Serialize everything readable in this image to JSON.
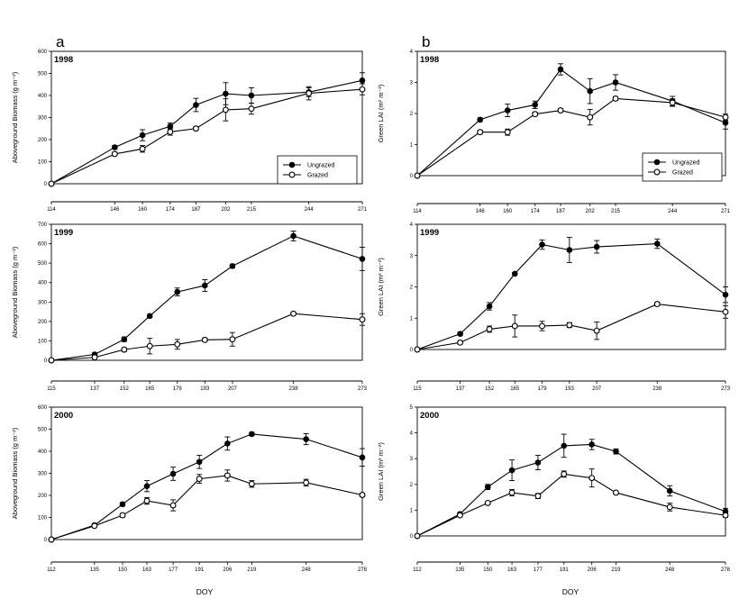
{
  "figure": {
    "panel_a_label": "a",
    "panel_b_label": "b",
    "x_title": "DOY"
  },
  "colors": {
    "line": "#000000",
    "background": "#ffffff"
  },
  "legend": {
    "series_1": "Ungrazed",
    "series_2": "Grazed"
  },
  "chart_data": [
    {
      "id": "a1998",
      "type": "line",
      "title": "1998",
      "ylabel": "Aboveground Biomass (g m⁻²)",
      "xlabel": "",
      "x": [
        114,
        146,
        160,
        174,
        187,
        202,
        215,
        244,
        271
      ],
      "ylim": [
        0,
        600
      ],
      "yticks": [
        0,
        100,
        200,
        300,
        400,
        500,
        600
      ],
      "series": [
        {
          "name": "Ungrazed",
          "values": [
            0,
            165,
            220,
            260,
            357,
            408,
            400,
            415,
            468
          ],
          "errors": [
            0,
            8,
            25,
            15,
            30,
            50,
            35,
            20,
            35
          ]
        },
        {
          "name": "Grazed",
          "values": [
            0,
            135,
            158,
            235,
            250,
            335,
            340,
            410,
            428
          ],
          "errors": [
            0,
            8,
            15,
            15,
            8,
            50,
            25,
            30,
            25
          ]
        }
      ],
      "legend_position": "bottom-right"
    },
    {
      "id": "b1998",
      "type": "line",
      "title": "1998",
      "ylabel": "Green LAI (m² m⁻²)",
      "xlabel": "",
      "x": [
        114,
        146,
        160,
        174,
        187,
        202,
        215,
        244,
        271
      ],
      "ylim": [
        0,
        4
      ],
      "yticks": [
        0,
        1,
        2,
        3,
        4
      ],
      "series": [
        {
          "name": "Ungrazed",
          "values": [
            0,
            1.8,
            2.1,
            2.28,
            3.42,
            2.72,
            3.0,
            2.4,
            1.7
          ],
          "errors": [
            0,
            0.06,
            0.2,
            0.12,
            0.18,
            0.4,
            0.25,
            0.15,
            0.2
          ]
        },
        {
          "name": "Grazed",
          "values": [
            0,
            1.4,
            1.4,
            1.98,
            2.1,
            1.88,
            2.48,
            2.35,
            1.88
          ],
          "errors": [
            0,
            0.06,
            0.1,
            0.06,
            0.06,
            0.25,
            0.06,
            0.12,
            0.1
          ]
        }
      ],
      "legend_position": "bottom-right"
    },
    {
      "id": "a1999",
      "type": "line",
      "title": "1999",
      "ylabel": "Aboveground Biomass (g m⁻²)",
      "xlabel": "",
      "x": [
        115,
        137,
        152,
        165,
        179,
        193,
        207,
        238,
        273
      ],
      "ylim": [
        0,
        700
      ],
      "yticks": [
        0,
        100,
        200,
        300,
        400,
        500,
        600,
        700
      ],
      "series": [
        {
          "name": "Ungrazed",
          "values": [
            0,
            30,
            108,
            228,
            352,
            385,
            485,
            640,
            522
          ],
          "errors": [
            0,
            8,
            12,
            8,
            20,
            30,
            10,
            25,
            60
          ]
        },
        {
          "name": "Grazed",
          "values": [
            0,
            15,
            55,
            73,
            82,
            105,
            108,
            240,
            210
          ],
          "errors": [
            0,
            8,
            10,
            40,
            25,
            10,
            35,
            8,
            30
          ]
        }
      ]
    },
    {
      "id": "b1999",
      "type": "line",
      "title": "1999",
      "ylabel": "Green LAI (m² m⁻²)",
      "xlabel": "",
      "x": [
        115,
        137,
        152,
        165,
        179,
        193,
        207,
        238,
        273
      ],
      "ylim": [
        0,
        4
      ],
      "yticks": [
        0,
        1,
        2,
        3,
        4
      ],
      "series": [
        {
          "name": "Ungrazed",
          "values": [
            0,
            0.5,
            1.38,
            2.42,
            3.35,
            3.18,
            3.28,
            3.38,
            1.75
          ],
          "errors": [
            0,
            0.05,
            0.12,
            0.04,
            0.15,
            0.4,
            0.2,
            0.15,
            0.25
          ]
        },
        {
          "name": "Grazed",
          "values": [
            0,
            0.22,
            0.65,
            0.75,
            0.75,
            0.78,
            0.6,
            1.45,
            1.2
          ],
          "errors": [
            0,
            0.05,
            0.1,
            0.35,
            0.15,
            0.08,
            0.28,
            0.06,
            0.2
          ]
        }
      ]
    },
    {
      "id": "a2000",
      "type": "line",
      "title": "2000",
      "ylabel": "Aboveground Biomass (g m⁻²)",
      "xlabel": "DOY",
      "x": [
        112,
        135,
        150,
        163,
        177,
        191,
        206,
        219,
        248,
        278
      ],
      "ylim": [
        0,
        600
      ],
      "yticks": [
        0,
        100,
        200,
        300,
        400,
        500,
        600
      ],
      "series": [
        {
          "name": "Ungrazed",
          "values": [
            0,
            65,
            160,
            242,
            298,
            352,
            435,
            478,
            455,
            372
          ],
          "errors": [
            0,
            5,
            8,
            25,
            30,
            30,
            30,
            8,
            25,
            40
          ]
        },
        {
          "name": "Grazed",
          "values": [
            0,
            62,
            110,
            175,
            155,
            275,
            290,
            252,
            258,
            202
          ],
          "errors": [
            0,
            5,
            8,
            15,
            25,
            20,
            25,
            15,
            15,
            8
          ]
        }
      ]
    },
    {
      "id": "b2000",
      "type": "line",
      "title": "2000",
      "ylabel": "Green LAI (m² m⁻²)",
      "xlabel": "DOY",
      "x": [
        112,
        135,
        150,
        163,
        177,
        191,
        206,
        219,
        248,
        278
      ],
      "ylim": [
        0,
        5
      ],
      "yticks": [
        0,
        1,
        2,
        3,
        4,
        5
      ],
      "series": [
        {
          "name": "Ungrazed",
          "values": [
            0,
            0.85,
            1.9,
            2.55,
            2.85,
            3.5,
            3.55,
            3.28,
            1.75,
            0.95
          ],
          "errors": [
            0,
            0.05,
            0.1,
            0.4,
            0.28,
            0.45,
            0.2,
            0.1,
            0.2,
            0.12
          ]
        },
        {
          "name": "Grazed",
          "values": [
            0,
            0.8,
            1.28,
            1.68,
            1.55,
            2.4,
            2.25,
            1.68,
            1.12,
            0.8
          ],
          "errors": [
            0,
            0.05,
            0.06,
            0.12,
            0.1,
            0.12,
            0.35,
            0.05,
            0.15,
            0.08
          ]
        }
      ]
    }
  ]
}
